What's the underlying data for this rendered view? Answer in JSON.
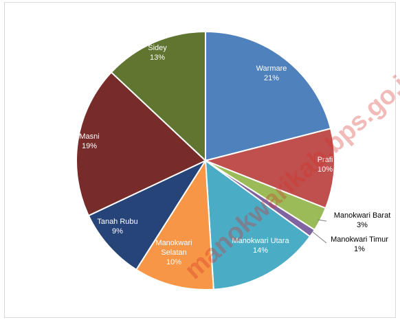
{
  "chart_data": {
    "type": "pie",
    "title": "",
    "categories": [
      "Warmare",
      "Prafi",
      "Manokwari Barat",
      "Manokwari Timur",
      "Manokwari Utara",
      "Manokwari Selatan",
      "Tanah Rubu",
      "Masni",
      "Sidey"
    ],
    "values": [
      21,
      10,
      3,
      1,
      14,
      10,
      9,
      19,
      13
    ],
    "value_labels": [
      "21%",
      "10%",
      "3%",
      "1%",
      "14%",
      "10%",
      "9%",
      "19%",
      "13%"
    ],
    "slice_label_lines": [
      [
        "Warmare",
        "21%"
      ],
      [
        "Prafi",
        "10%"
      ],
      [
        "Manokwari Barat",
        "3%"
      ],
      [
        "Manokwari Timur",
        "1%"
      ],
      [
        "Manokwari Utara",
        "14%"
      ],
      [
        "Manokwari",
        "Selatan",
        "10%"
      ],
      [
        "Tanah Rubu",
        "9%"
      ],
      [
        "Masni",
        "19%"
      ],
      [
        "Sidey",
        "13%"
      ]
    ],
    "colors": [
      "#4f81bd",
      "#c0504d",
      "#9bbb59",
      "#8064a2",
      "#4bacc6",
      "#f79646",
      "#264478",
      "#772c2a",
      "#5f7530"
    ],
    "label_colors": [
      "#ffffff",
      "#ffffff",
      "#000000",
      "#000000",
      "#ffffff",
      "#ffffff",
      "#ffffff",
      "#ffffff",
      "#ffffff"
    ],
    "start_angle_deg": 0,
    "direction": "clockwise"
  },
  "watermark": "manokwarikab.bps.go.id"
}
